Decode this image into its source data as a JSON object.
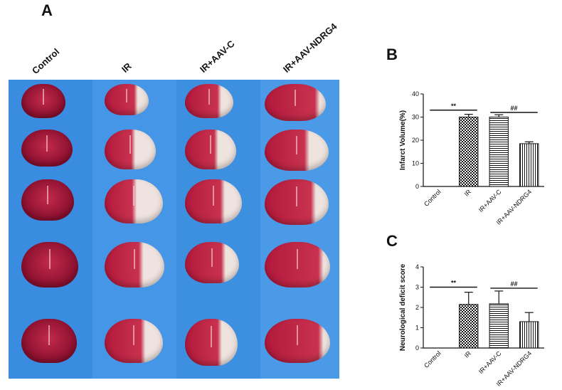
{
  "panels": {
    "a": "A",
    "b": "B",
    "c": "C"
  },
  "photo_columns": [
    "Control",
    "IR",
    "IR+AAV-C",
    "IR+AAV-NDRG4"
  ],
  "colors": {
    "photo_background": "#3d8fe0",
    "tissue_red": "#b3193c",
    "tissue_dark": "#8a0f2e",
    "infarct_white": "#efe3df"
  },
  "chart_data": [
    {
      "type": "bar",
      "panel": "B",
      "categories": [
        "Control",
        "IR",
        "IR+AAV-C",
        "IR+AAV-NDRG4"
      ],
      "values": [
        0,
        30,
        30,
        18.5
      ],
      "errors": [
        0,
        1.2,
        1.0,
        0.8
      ],
      "patterns": [
        "none",
        "checker",
        "horizontal",
        "vertical"
      ],
      "ylabel": "Infarct Volume(%)",
      "ylim": [
        0,
        40
      ],
      "yticks": [
        0,
        10,
        20,
        30,
        40
      ],
      "significance": [
        {
          "from": 0,
          "to": 1,
          "label": "**",
          "y": 33
        },
        {
          "from": 2,
          "to": 3,
          "label": "##",
          "y": 32
        }
      ]
    },
    {
      "type": "bar",
      "panel": "C",
      "categories": [
        "Control",
        "IR",
        "IR+AAV-C",
        "IR+AAV-NDRG4"
      ],
      "values": [
        0,
        2.15,
        2.18,
        1.3
      ],
      "errors": [
        0,
        0.6,
        0.63,
        0.45
      ],
      "patterns": [
        "none",
        "checker",
        "horizontal",
        "vertical"
      ],
      "ylabel": "Neurological deficit score",
      "ylim": [
        0,
        4
      ],
      "yticks": [
        0,
        1,
        2,
        3,
        4
      ],
      "significance": [
        {
          "from": 0,
          "to": 1,
          "label": "**",
          "y": 3.0
        },
        {
          "from": 2,
          "to": 3,
          "label": "##",
          "y": 2.95
        }
      ]
    }
  ]
}
